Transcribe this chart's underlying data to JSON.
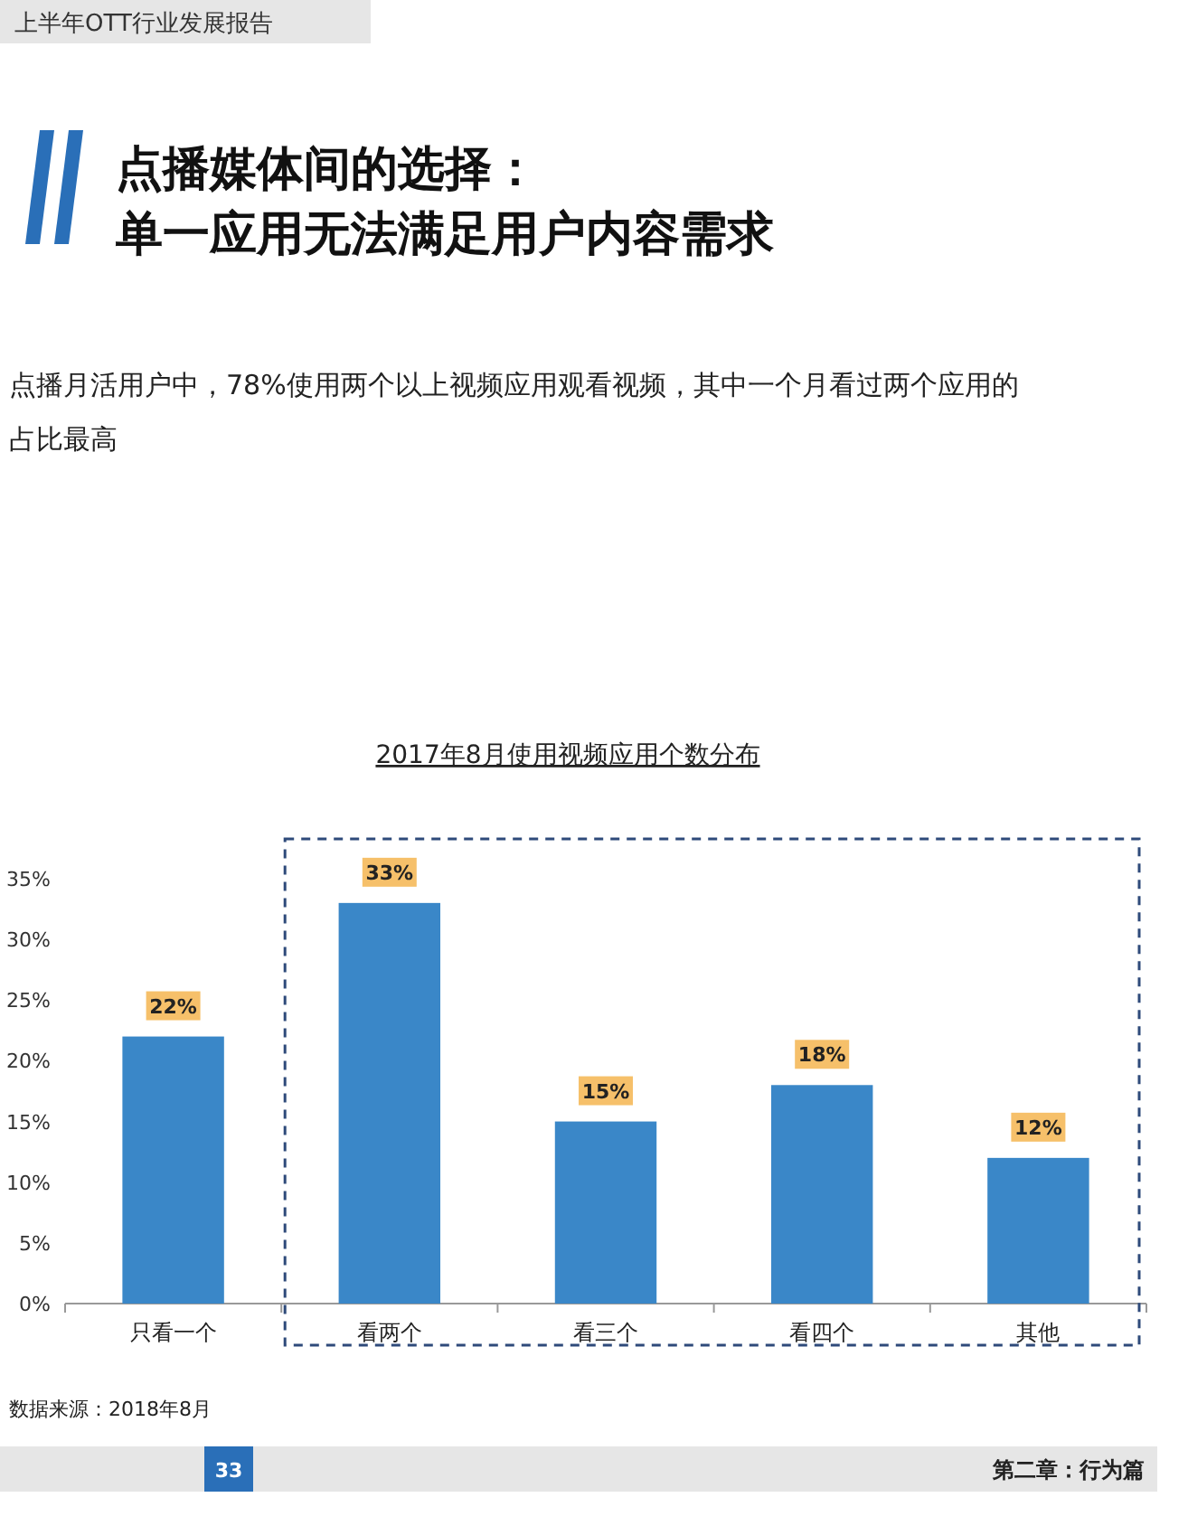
{
  "chart_data": {
    "type": "bar",
    "title": "2017年8月使用视频应用个数分布",
    "categories": [
      "只看一个",
      "看两个",
      "看三个",
      "看四个",
      "其他"
    ],
    "values": [
      22,
      33,
      15,
      18,
      12
    ],
    "value_labels": [
      "22%",
      "33%",
      "15%",
      "18%",
      "12%"
    ],
    "color": "#3a87c8",
    "ylim": [
      0,
      35
    ],
    "yticks": [
      {
        "value": 0,
        "label": "0%"
      },
      {
        "value": 5,
        "label": "5%"
      },
      {
        "value": 10,
        "label": "10%"
      },
      {
        "value": 15,
        "label": "15%"
      },
      {
        "value": 20,
        "label": "20%"
      },
      {
        "value": 25,
        "label": "25%"
      },
      {
        "value": 30,
        "label": "30%"
      },
      {
        "value": 35,
        "label": "35%"
      }
    ],
    "grid": false,
    "annotations": [
      "上半年OTT行业发展报告",
      "点播媒体间的选择：",
      "单一应用无法满足用户内容需求",
      "点播月活用户中，78%使用两个以上视频应用观看视频，其中一个月看过两个应用的占比最高",
      "数据来源：2018年8月",
      "33",
      "第二章：行为篇"
    ]
  }
}
